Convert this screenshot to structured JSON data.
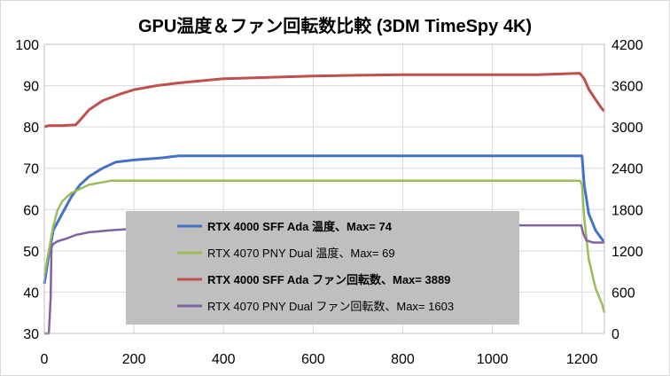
{
  "chart_data": {
    "type": "line",
    "title": "GPU温度＆ファン回転数比較 (3DM TimeSpy 4K)",
    "x_ticks": [
      "0",
      "200",
      "400",
      "600",
      "800",
      "1000",
      "1200"
    ],
    "xlim": [
      0,
      1250
    ],
    "y_left_ticks": [
      "30",
      "40",
      "50",
      "60",
      "70",
      "80",
      "90",
      "100"
    ],
    "ylim_left": [
      30,
      100
    ],
    "y_right_ticks": [
      "0",
      "600",
      "1200",
      "1800",
      "2400",
      "3000",
      "3600",
      "4200"
    ],
    "ylim_right": [
      0,
      4200
    ],
    "grid": true,
    "legend_position": "center",
    "series": [
      {
        "name": "RTX 4000 SFF Ada 温度、Max= 74",
        "axis": "left",
        "color": "#4472c4",
        "bold": true,
        "x": [
          0,
          10,
          20,
          40,
          60,
          80,
          100,
          130,
          160,
          200,
          260,
          300,
          400,
          500,
          600,
          700,
          800,
          900,
          1000,
          1100,
          1190,
          1200,
          1205,
          1215,
          1230,
          1250
        ],
        "y": [
          42,
          49,
          55,
          59,
          63,
          66,
          68,
          70,
          71.5,
          72,
          72.5,
          73,
          73,
          73,
          73,
          73,
          73,
          73,
          73,
          73,
          73,
          73,
          66,
          59,
          55,
          52
        ]
      },
      {
        "name": "RTX 4070 PNY Dual 温度、Max= 69",
        "axis": "left",
        "color": "#9bbb59",
        "bold": false,
        "x": [
          0,
          10,
          20,
          30,
          40,
          60,
          80,
          100,
          150,
          200,
          300,
          400,
          500,
          600,
          700,
          800,
          900,
          1000,
          1100,
          1195,
          1200,
          1205,
          1215,
          1230,
          1245,
          1250
        ],
        "y": [
          44,
          50,
          56,
          60,
          62,
          64,
          65,
          66,
          67,
          67,
          67,
          67,
          67,
          67,
          67,
          67,
          67,
          67,
          67,
          67,
          66,
          58,
          48,
          41,
          37,
          35
        ]
      },
      {
        "name": "RTX 4000 SFF Ada ファン回転数、Max= 3889",
        "axis": "right",
        "color": "#c0504d",
        "bold": true,
        "x": [
          0,
          10,
          40,
          70,
          80,
          100,
          130,
          170,
          200,
          250,
          300,
          350,
          400,
          500,
          600,
          700,
          800,
          900,
          1000,
          1100,
          1195,
          1205,
          1215,
          1230,
          1245,
          1250
        ],
        "y": [
          3000,
          3020,
          3020,
          3030,
          3100,
          3250,
          3380,
          3480,
          3540,
          3600,
          3640,
          3670,
          3700,
          3720,
          3740,
          3750,
          3760,
          3760,
          3760,
          3760,
          3780,
          3700,
          3550,
          3400,
          3260,
          3230
        ]
      },
      {
        "name": "RTX 4070 PNY Dual ファン回転数、Max= 1603",
        "axis": "right",
        "color": "#8064a2",
        "bold": false,
        "x": [
          0,
          10,
          14,
          16,
          20,
          30,
          50,
          70,
          100,
          150,
          200,
          300,
          400,
          500,
          600,
          700,
          800,
          900,
          1000,
          1100,
          1198,
          1203,
          1210,
          1225,
          1250
        ],
        "y": [
          0,
          0,
          500,
          1250,
          1300,
          1340,
          1380,
          1430,
          1470,
          1500,
          1520,
          1540,
          1550,
          1560,
          1570,
          1570,
          1570,
          1570,
          1570,
          1570,
          1570,
          1450,
          1350,
          1320,
          1320
        ]
      }
    ]
  }
}
